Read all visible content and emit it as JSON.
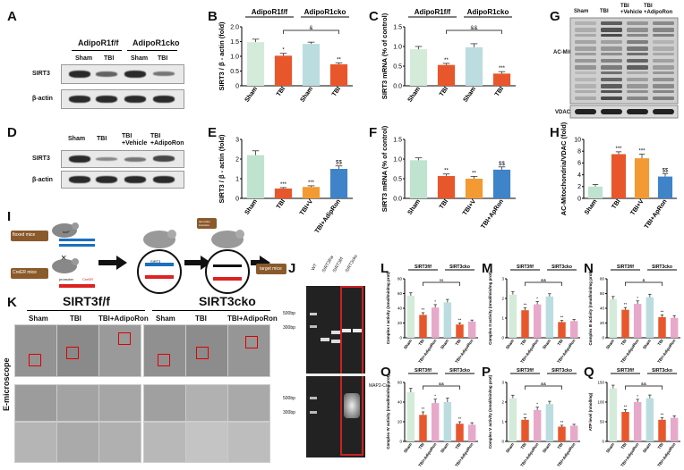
{
  "labels": {
    "A": "A",
    "B": "B",
    "C": "C",
    "G": "G",
    "D": "D",
    "E": "E",
    "F": "F",
    "H": "H",
    "I": "I",
    "J": "J",
    "K": "K",
    "L": "L",
    "M": "M",
    "N": "N",
    "O": "O",
    "P": "P",
    "Q": "Q"
  },
  "panelA": {
    "group1": "AdipoR1f/f",
    "group2": "AdipoR1cko",
    "lanes": [
      "Sham",
      "TBI",
      "Sham",
      "TBI"
    ],
    "rows": [
      "SIRT3",
      "β-actin"
    ]
  },
  "panelD": {
    "lanes": [
      "Sham",
      "TBI",
      "TBI +Vehicle",
      "TBI +AdipoRon"
    ],
    "rows": [
      "SIRT3",
      "β-actin"
    ]
  },
  "panelG": {
    "lanes": [
      "Sham",
      "TBI",
      "TBI +Vehicle",
      "TBI +AdipoRon"
    ],
    "rows": [
      "AC-Mitochondria",
      "VDAC"
    ]
  },
  "panelJ": {
    "lanes": [
      "WT",
      "SIRT3f/w",
      "SIRT3f/f",
      "SIRT3cko"
    ],
    "markers": [
      "500bp",
      "300bp",
      "500bp",
      "300bp"
    ],
    "gene": "MAP2-Cre"
  },
  "panelI": {
    "left1": "floxed mice",
    "left2": "CreER mice",
    "cross": "×",
    "promoter": "promoter",
    "creer": "CreER",
    "loxp": "loxP",
    "sirt3": "SIRT3",
    "target": "target mice",
    "tam": "tamoxifen induction"
  },
  "panelK": {
    "title1": "SIRT3f/f",
    "title2": "SIRT3cko",
    "cols": [
      "Sham",
      "TBI",
      "TBI+AdipoRon",
      "Sham",
      "TBI",
      "TBI+AdipoRon"
    ],
    "side": "E-microscope"
  },
  "colors": {
    "sham": "#bfe3cf",
    "tbi": "#e8572c",
    "veh": "#f39a33",
    "adipo": "#3f84c8",
    "sham2": "#bcdde0",
    "pink": "#e7a9c9",
    "light": "#d5ebd9"
  },
  "chart_data": [
    {
      "id": "B",
      "type": "bar",
      "ylabel": "SIRT3 / β - actin (fold)",
      "ylim": [
        0,
        2.0
      ],
      "yticks": [
        "0",
        "0.5",
        "1.0",
        "1.5",
        "2.0"
      ],
      "group_labels": [
        "AdipoR1f/f",
        "AdipoR1cko"
      ],
      "categories": [
        "Sham",
        "TBI",
        "Sham",
        "TBI"
      ],
      "values": [
        1.48,
        1.02,
        1.42,
        0.73
      ],
      "errors": [
        0.1,
        0.08,
        0.06,
        0.05
      ],
      "sig": [
        "",
        "*",
        "",
        "**"
      ],
      "bracket": "&"
    },
    {
      "id": "C",
      "type": "bar",
      "ylabel": "SIRT3 mRNA (% of control)",
      "ylim": [
        0,
        1.5
      ],
      "yticks": [
        "0.0",
        "0.5",
        "1.0",
        "1.5"
      ],
      "group_labels": [
        "AdipoR1f/f",
        "AdipoR1cko"
      ],
      "categories": [
        "Sham",
        "TBI",
        "Sham",
        "TBI"
      ],
      "values": [
        0.93,
        0.53,
        0.98,
        0.31
      ],
      "errors": [
        0.07,
        0.04,
        0.09,
        0.05
      ],
      "sig": [
        "",
        "**",
        "",
        "***"
      ],
      "bracket": "&&"
    },
    {
      "id": "E",
      "type": "bar",
      "ylabel": "SIRT3 / β - actin (fold)",
      "ylim": [
        0,
        3
      ],
      "yticks": [
        "0",
        "1",
        "2",
        "3"
      ],
      "categories": [
        "Sham",
        "TBI",
        "TBI+V",
        "TBI+AdipRon"
      ],
      "values": [
        2.2,
        0.5,
        0.58,
        1.5
      ],
      "errors": [
        0.22,
        0.05,
        0.06,
        0.15
      ],
      "sig": [
        "",
        "***",
        "***",
        "$$"
      ]
    },
    {
      "id": "F",
      "type": "bar",
      "ylabel": "SIRT3 mRNA (% of control)",
      "ylim": [
        0,
        1.5
      ],
      "yticks": [
        "0.0",
        "0.5",
        "1.0",
        "1.5"
      ],
      "categories": [
        "Sham",
        "TBI",
        "TBI+V",
        "TBI+ApRon"
      ],
      "values": [
        0.97,
        0.57,
        0.5,
        0.73
      ],
      "errors": [
        0.06,
        0.05,
        0.06,
        0.07
      ],
      "sig": [
        "",
        "**",
        "**",
        "$$"
      ]
    },
    {
      "id": "H",
      "type": "bar",
      "ylabel": "AC-Mitochondria/VDAC (fold)",
      "ylim": [
        0,
        10
      ],
      "yticks": [
        "0",
        "2",
        "4",
        "6",
        "8",
        "10"
      ],
      "categories": [
        "Sham",
        "TBI",
        "TBI+V",
        "TBI+ApRon"
      ],
      "values": [
        2.0,
        7.5,
        6.8,
        3.7
      ],
      "errors": [
        0.35,
        0.4,
        0.7,
        0.5
      ],
      "sig": [
        "",
        "***",
        "***",
        "$$"
      ]
    },
    {
      "id": "L",
      "type": "bar",
      "ylabel": "Complex I activity (nmol/min/mg prot)",
      "ylim": [
        0,
        80
      ],
      "yticks": [
        "0",
        "20",
        "40",
        "60",
        "80"
      ],
      "group_labels": [
        "SIRT3f/f",
        "SIRT3cko"
      ],
      "categories": [
        "Sham",
        "TBI",
        "TBI+AdipoRon",
        "Sham",
        "TBI",
        "TBI+AdipoRon"
      ],
      "values": [
        57,
        31,
        41,
        48,
        18,
        22
      ],
      "errors": [
        4,
        3,
        4,
        4,
        2,
        2
      ],
      "sig": [
        "",
        "**",
        "*",
        "",
        "**",
        ""
      ],
      "bracket": "ns"
    },
    {
      "id": "M",
      "type": "bar",
      "ylabel": "Complex II activity (nmol/min/mg prot)",
      "ylim": [
        0,
        3
      ],
      "yticks": [
        "0",
        "1",
        "2",
        "3"
      ],
      "group_labels": [
        "SIRT3f/f",
        "SIRT3cko"
      ],
      "categories": [
        "Sham",
        "TBI",
        "TBI+AdipoRon",
        "Sham",
        "TBI",
        "TBI+AdipoRon"
      ],
      "values": [
        2.2,
        1.4,
        1.7,
        2.1,
        0.8,
        0.85
      ],
      "errors": [
        0.15,
        0.12,
        0.14,
        0.14,
        0.08,
        0.08
      ],
      "sig": [
        "",
        "**",
        "*",
        "",
        "**",
        ""
      ],
      "bracket": "&&"
    },
    {
      "id": "N",
      "type": "bar",
      "ylabel": "Complex III activity (nmol/min/mg prot)",
      "ylim": [
        0,
        80
      ],
      "yticks": [
        "0",
        "20",
        "40",
        "60",
        "80"
      ],
      "group_labels": [
        "SIRT3f/f",
        "SIRT3cko"
      ],
      "categories": [
        "Sham",
        "TBI",
        "TBI+AdipoRon",
        "Sham",
        "TBI",
        "TBI+AdipoRon"
      ],
      "values": [
        52,
        38,
        46,
        55,
        28,
        27
      ],
      "errors": [
        4,
        3,
        4,
        4,
        3,
        3
      ],
      "sig": [
        "",
        "**",
        "*",
        "",
        "**",
        ""
      ],
      "bracket": "&"
    },
    {
      "id": "O",
      "type": "bar",
      "ylabel": "Complex IV activity (nmol/min/mg prot)",
      "ylim": [
        0,
        60
      ],
      "yticks": [
        "0",
        "20",
        "40",
        "60"
      ],
      "group_labels": [
        "SIRT3f/f",
        "SIRT3cko"
      ],
      "categories": [
        "Sham",
        "TBI",
        "TBI+AdipoRon",
        "Sham",
        "TBI",
        "TBI+AdipoRon"
      ],
      "values": [
        50,
        27,
        39,
        40,
        18,
        17
      ],
      "errors": [
        4,
        3,
        4,
        4,
        2,
        2
      ],
      "sig": [
        "",
        "**",
        "*",
        "",
        "**",
        ""
      ],
      "bracket": "&&"
    },
    {
      "id": "P",
      "type": "bar",
      "ylabel": "Complex V activity (nmol/min/mg prot)",
      "ylim": [
        0,
        3
      ],
      "yticks": [
        "0",
        "1",
        "2",
        "3"
      ],
      "group_labels": [
        "SIRT3f/f",
        "SIRT3cko"
      ],
      "categories": [
        "Sham",
        "TBI",
        "TBI+AdipoRon",
        "Sham",
        "TBI",
        "TBI+AdipoRon"
      ],
      "values": [
        2.2,
        1.1,
        1.6,
        1.9,
        0.75,
        0.8
      ],
      "errors": [
        0.15,
        0.1,
        0.14,
        0.14,
        0.07,
        0.07
      ],
      "sig": [
        "",
        "**",
        "*",
        "",
        "**",
        ""
      ],
      "bracket": "&&"
    },
    {
      "id": "Q",
      "type": "bar",
      "ylabel": "ATP level (nmol/mg)",
      "ylim": [
        0,
        150
      ],
      "yticks": [
        "0",
        "50",
        "100",
        "150"
      ],
      "group_labels": [
        "SIRT3f/f",
        "SIRT3cko"
      ],
      "categories": [
        "Sham",
        "TBI",
        "TBI+AdipoRon",
        "Sham",
        "TBI",
        "TBI+AdipoRon"
      ],
      "values": [
        135,
        75,
        100,
        110,
        55,
        60
      ],
      "errors": [
        8,
        6,
        7,
        8,
        5,
        5
      ],
      "sig": [
        "",
        "**",
        "*",
        "",
        "**",
        ""
      ],
      "bracket": "&&"
    }
  ]
}
